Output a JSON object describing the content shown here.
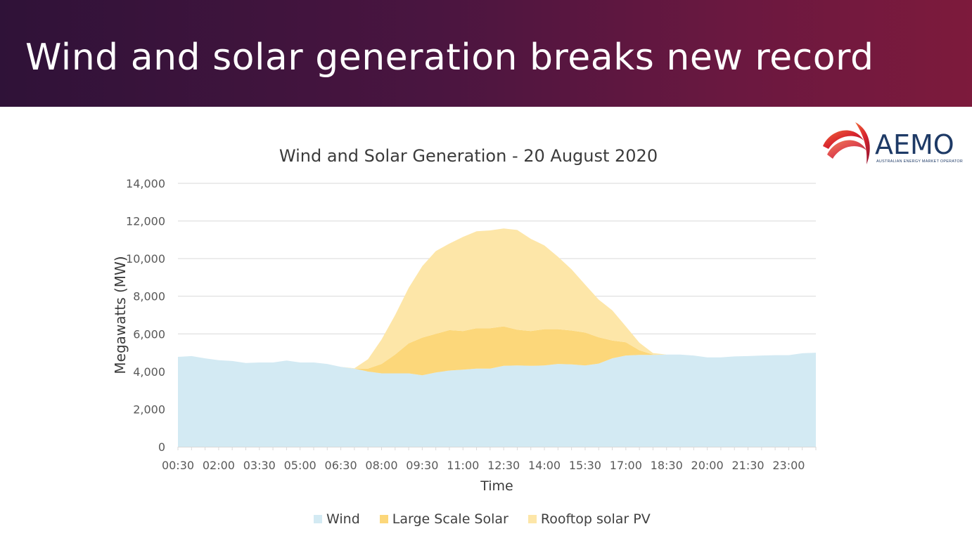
{
  "slide": {
    "title": "Wind and solar generation breaks new record"
  },
  "logo": {
    "word": "AEMO",
    "tagline": "AUSTRALIAN ENERGY MARKET OPERATOR"
  },
  "colors": {
    "banner_start": "#2f1238",
    "banner_end": "#7d1a3c",
    "wind": "#d3eaf3",
    "large_scale_solar": "#fcd77a",
    "rooftop_solar_pv": "#fde6a8",
    "gridline": "#d9d9d9",
    "axis_text": "#595959"
  },
  "chart_data": {
    "type": "area",
    "stacked": true,
    "title": "Wind and Solar Generation - 20 August 2020",
    "xlabel": "Time",
    "ylabel": "Megawatts (MW)",
    "ylim": [
      0,
      14000
    ],
    "yticks": [
      0,
      2000,
      4000,
      6000,
      8000,
      10000,
      12000,
      14000
    ],
    "ytick_labels": [
      "0",
      "2,000",
      "4,000",
      "6,000",
      "8,000",
      "10,000",
      "12,000",
      "14,000"
    ],
    "grid": true,
    "legend_position": "bottom",
    "x": [
      "00:30",
      "01:00",
      "01:30",
      "02:00",
      "02:30",
      "03:00",
      "03:30",
      "04:00",
      "04:30",
      "05:00",
      "05:30",
      "06:00",
      "06:30",
      "07:00",
      "07:30",
      "08:00",
      "08:30",
      "09:00",
      "09:30",
      "10:00",
      "10:30",
      "11:00",
      "11:30",
      "12:00",
      "12:30",
      "13:00",
      "13:30",
      "14:00",
      "14:30",
      "15:00",
      "15:30",
      "16:00",
      "16:30",
      "17:00",
      "17:30",
      "18:00",
      "18:30",
      "19:00",
      "19:30",
      "20:00",
      "20:30",
      "21:00",
      "21:30",
      "22:00",
      "22:30",
      "23:00",
      "23:30",
      "00:00"
    ],
    "xtick_labels": [
      "00:30",
      "02:00",
      "03:30",
      "05:00",
      "06:30",
      "08:00",
      "09:30",
      "11:00",
      "12:30",
      "14:00",
      "15:30",
      "17:00",
      "18:30",
      "20:00",
      "21:30",
      "23:00"
    ],
    "series": [
      {
        "name": "Wind",
        "color": "#d3eaf3",
        "values": [
          4780,
          4820,
          4700,
          4600,
          4560,
          4450,
          4480,
          4480,
          4580,
          4480,
          4480,
          4400,
          4250,
          4150,
          4000,
          3900,
          3900,
          3900,
          3800,
          3950,
          4050,
          4100,
          4150,
          4150,
          4300,
          4320,
          4300,
          4320,
          4400,
          4380,
          4320,
          4420,
          4700,
          4850,
          4880,
          4880,
          4900,
          4900,
          4850,
          4750,
          4750,
          4800,
          4820,
          4850,
          4870,
          4870,
          4970,
          5000
        ]
      },
      {
        "name": "Large Scale Solar",
        "color": "#fcd77a",
        "values": [
          0,
          0,
          0,
          0,
          0,
          0,
          0,
          0,
          0,
          0,
          0,
          0,
          0,
          0,
          150,
          500,
          1000,
          1600,
          2000,
          2050,
          2150,
          2050,
          2150,
          2150,
          2100,
          1900,
          1850,
          1930,
          1850,
          1800,
          1750,
          1400,
          950,
          700,
          250,
          20,
          0,
          0,
          0,
          0,
          0,
          0,
          0,
          0,
          0,
          0,
          0,
          0
        ]
      },
      {
        "name": "Rooftop solar PV",
        "color": "#fde6a8",
        "values": [
          0,
          0,
          0,
          0,
          0,
          0,
          0,
          0,
          0,
          0,
          0,
          0,
          0,
          20,
          500,
          1300,
          2100,
          2950,
          3800,
          4400,
          4600,
          5000,
          5150,
          5200,
          5200,
          5300,
          4900,
          4450,
          3850,
          3250,
          2550,
          2000,
          1600,
          850,
          400,
          80,
          0,
          0,
          0,
          0,
          0,
          0,
          0,
          0,
          0,
          0,
          0,
          0
        ]
      }
    ]
  }
}
